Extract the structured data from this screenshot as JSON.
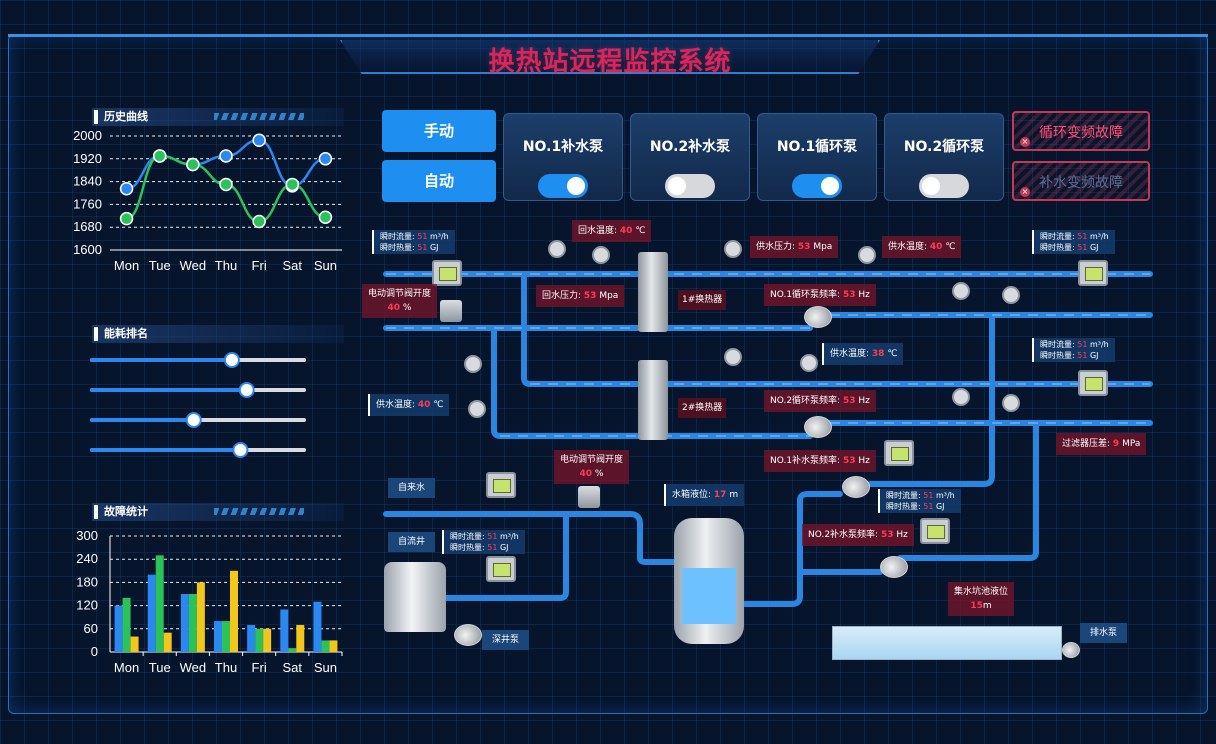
{
  "header": {
    "title": "换热站远程监控系统"
  },
  "left": {
    "history": {
      "title": "历史曲线",
      "chart_data": {
        "type": "line",
        "categories": [
          "Mon",
          "Tue",
          "Wed",
          "Thu",
          "Fri",
          "Sat",
          "Sun"
        ],
        "ylim": [
          1600,
          2000
        ],
        "yticks": [
          "2000",
          "1920",
          "1840",
          "1760",
          "1680",
          "1600"
        ],
        "series": [
          {
            "values": [
              1815,
              1930,
              1900,
              1930,
              1985,
              1825,
              1920
            ],
            "color": "#2a88f0"
          },
          {
            "values": [
              1710,
              1930,
              1900,
              1830,
              1700,
              1830,
              1715
            ],
            "color": "#2bc25a"
          }
        ]
      }
    },
    "energy": {
      "title": "能耗排名",
      "sliders": [
        0.66,
        0.73,
        0.48,
        0.7
      ]
    },
    "fault": {
      "title": "故障统计",
      "chart_data": {
        "type": "bar",
        "categories": [
          "Mon",
          "Tue",
          "Wed",
          "Thu",
          "Fri",
          "Sat",
          "Sun"
        ],
        "ylim": [
          0,
          300
        ],
        "yticks": [
          "300",
          "240",
          "180",
          "120",
          "60",
          "0"
        ],
        "series": [
          {
            "values": [
              120,
              200,
              150,
              80,
              70,
              110,
              130
            ],
            "color": "#2a88f0"
          },
          {
            "values": [
              140,
              250,
              150,
              80,
              60,
              10,
              30
            ],
            "color": "#2bc25a"
          },
          {
            "values": [
              40,
              50,
              180,
              210,
              60,
              70,
              30
            ],
            "color": "#f2c61b"
          }
        ]
      }
    }
  },
  "controls": {
    "manual": "手动",
    "auto": "自动",
    "pumps": [
      {
        "label": "NO.1补水泵",
        "state": "on"
      },
      {
        "label": "NO.2补水泵",
        "state": "off"
      },
      {
        "label": "NO.1循环泵",
        "state": "on"
      },
      {
        "label": "NO.2循环泵",
        "state": "off"
      }
    ],
    "faults": [
      {
        "label": "循环变频故障",
        "state": "active"
      },
      {
        "label": "补水变频故障",
        "state": "inactive"
      }
    ]
  },
  "process": {
    "flow_meter_tl": {
      "flow_label": "瞬时流量:",
      "flow_value": "51",
      "flow_unit": "m³/h",
      "heat_label": "瞬时热量:",
      "heat_value": "51",
      "heat_unit": "GJ"
    },
    "flow_meter_tr": {
      "flow_label": "瞬时流量:",
      "flow_value": "51",
      "flow_unit": "m³/h",
      "heat_label": "瞬时热量:",
      "heat_value": "51",
      "heat_unit": "GJ"
    },
    "flow_meter_r2": {
      "flow_label": "瞬时流量:",
      "flow_value": "51",
      "flow_unit": "m³/h",
      "heat_label": "瞬时热量:",
      "heat_value": "51",
      "heat_unit": "GJ"
    },
    "flow_meter_mid": {
      "flow_label": "瞬时流量:",
      "flow_value": "51",
      "flow_unit": "m³/h",
      "heat_label": "瞬时热量:",
      "heat_value": "51",
      "heat_unit": "GJ"
    },
    "flow_meter_left": {
      "flow_label": "瞬时流量:",
      "flow_value": "51",
      "flow_unit": "m³/h",
      "heat_label": "瞬时热量:",
      "heat_value": "51",
      "heat_unit": "GJ"
    },
    "return_temp": {
      "label": "回水温度:",
      "value": "40",
      "unit": "℃"
    },
    "return_pressure": {
      "label": "回水压力:",
      "value": "53",
      "unit": "Mpa"
    },
    "supply_pressure": {
      "label": "供水压力:",
      "value": "53",
      "unit": "Mpa"
    },
    "supply_temp_top": {
      "label": "供水温度:",
      "value": "40",
      "unit": "℃"
    },
    "supply_temp_mid": {
      "label": "供水温度:",
      "value": "38",
      "unit": "℃"
    },
    "supply_temp_left": {
      "label": "供水温度:",
      "value": "40",
      "unit": "℃"
    },
    "valve_top": {
      "label": "电动调节阀开度",
      "value": "40",
      "unit": "%"
    },
    "valve_mid": {
      "label": "电动调节阀开度",
      "value": "40",
      "unit": "%"
    },
    "hx1": "1#换热器",
    "hx2": "2#换热器",
    "circ_pump1": {
      "label": "NO.1循环泵频率:",
      "value": "53",
      "unit": "Hz"
    },
    "circ_pump2": {
      "label": "NO.2循环泵频率:",
      "value": "53",
      "unit": "Hz"
    },
    "makeup_pump1": {
      "label": "NO.1补水泵频率:",
      "value": "53",
      "unit": "Hz"
    },
    "makeup_pump2": {
      "label": "NO.2补水泵频率:",
      "value": "53",
      "unit": "Hz"
    },
    "filter_pressure": {
      "label": "过滤器压差:",
      "value": "9",
      "unit": "MPa"
    },
    "tank_level": {
      "label": "水箱液位:",
      "value": "17",
      "unit": "m"
    },
    "pit_level": {
      "label": "集水坑池液位",
      "value": "15",
      "unit": "m"
    },
    "tap_water": "自来水",
    "self_well": "自流井",
    "deep_pump": "深井泵",
    "drain_pump": "排水泵"
  }
}
